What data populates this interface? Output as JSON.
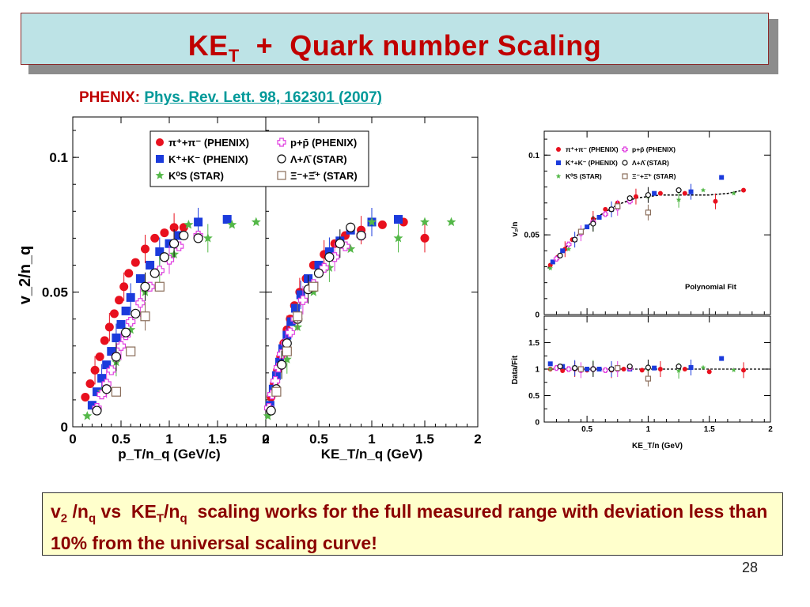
{
  "title": {
    "main": "KE",
    "sub": "T",
    "rest": "  +  Quark number Scaling"
  },
  "reference": {
    "label": "PHENIX:",
    "link": "Phys. Rev. Lett. 98, 162301 (2007)"
  },
  "note": {
    "part1": "v",
    "sub1": "2",
    "part2": " /n",
    "sub2": "q",
    "part3": " vs  KE",
    "sub3": "T",
    "part4": "/n",
    "sub4": "q",
    "part5": "  scaling works for the full measured range with deviation less than 10% from the universal scaling curve!"
  },
  "page_number": "28",
  "colors": {
    "pi": "#e8101e",
    "K": "#1b3bdc",
    "Ks": "#54b848",
    "p": "#e040e0",
    "lambda": "#111111",
    "xi": "#8a6d5a",
    "title": "#c00000",
    "link": "#009999"
  },
  "chart_data": [
    {
      "type": "scatter",
      "panel": "left",
      "xlabel": "p_T/n_q (GeV/c)",
      "ylabel": "v_2/n_q",
      "xlim": [
        0,
        2
      ],
      "ylim": [
        0,
        0.115
      ],
      "xticks": [
        "0",
        "0.5",
        "1",
        "1.5",
        "2"
      ],
      "yticks": [
        "0",
        "0.05",
        "0.1"
      ],
      "legend": [
        {
          "name": "π⁺+π⁻ (PHENIX)",
          "marker": "circle",
          "color": "#e8101e"
        },
        {
          "name": "p+p̄ (PHENIX)",
          "marker": "cross-open",
          "color": "#e040e0"
        },
        {
          "name": "K⁺+K⁻ (PHENIX)",
          "marker": "square",
          "color": "#1b3bdc"
        },
        {
          "name": "Λ+Λ̄ (STAR)",
          "marker": "circle-open",
          "color": "#111111"
        },
        {
          "name": "K⁰S (STAR)",
          "marker": "star",
          "color": "#54b848"
        },
        {
          "name": "Ξ⁻+Ξ̄⁺ (STAR)",
          "marker": "square-open",
          "color": "#8a6d5a"
        }
      ],
      "series": [
        {
          "name": "π⁺+π⁻ (PHENIX)",
          "x": [
            0.13,
            0.18,
            0.23,
            0.28,
            0.33,
            0.38,
            0.43,
            0.48,
            0.53,
            0.58,
            0.65,
            0.75,
            0.85,
            0.95,
            1.05,
            1.15
          ],
          "y": [
            0.011,
            0.016,
            0.021,
            0.026,
            0.032,
            0.037,
            0.042,
            0.047,
            0.052,
            0.057,
            0.061,
            0.066,
            0.07,
            0.072,
            0.074,
            0.074
          ]
        },
        {
          "name": "K⁺+K⁻ (PHENIX)",
          "x": [
            0.2,
            0.25,
            0.3,
            0.35,
            0.4,
            0.45,
            0.5,
            0.55,
            0.6,
            0.7,
            0.8,
            0.9,
            1.0,
            1.1,
            1.3,
            1.6
          ],
          "y": [
            0.008,
            0.013,
            0.018,
            0.023,
            0.028,
            0.033,
            0.038,
            0.043,
            0.048,
            0.055,
            0.06,
            0.065,
            0.068,
            0.071,
            0.076,
            0.077
          ]
        },
        {
          "name": "K⁰S (STAR)",
          "x": [
            0.15,
            0.3,
            0.45,
            0.6,
            0.75,
            0.9,
            1.05,
            1.2,
            1.4,
            1.65,
            1.9
          ],
          "y": [
            0.004,
            0.013,
            0.024,
            0.036,
            0.05,
            0.058,
            0.064,
            0.075,
            0.07,
            0.075,
            0.076
          ]
        },
        {
          "name": "p+p̄ (PHENIX)",
          "x": [
            0.25,
            0.3,
            0.35,
            0.4,
            0.45,
            0.5,
            0.55,
            0.6,
            0.7,
            0.8,
            0.9,
            1.0,
            1.1,
            1.3
          ],
          "y": [
            0.007,
            0.012,
            0.016,
            0.021,
            0.026,
            0.03,
            0.034,
            0.039,
            0.046,
            0.052,
            0.058,
            0.062,
            0.067,
            0.071
          ]
        },
        {
          "name": "Λ+Λ̄ (STAR)",
          "x": [
            0.25,
            0.35,
            0.45,
            0.55,
            0.65,
            0.75,
            0.85,
            0.95,
            1.05,
            1.15,
            1.3
          ],
          "y": [
            0.006,
            0.014,
            0.026,
            0.035,
            0.042,
            0.052,
            0.057,
            0.063,
            0.068,
            0.071,
            0.07
          ]
        },
        {
          "name": "Ξ⁻+Ξ̄⁺ (STAR)",
          "x": [
            0.45,
            0.6,
            0.75,
            0.9
          ],
          "y": [
            0.013,
            0.028,
            0.041,
            0.052
          ]
        }
      ]
    },
    {
      "type": "scatter",
      "panel": "middle",
      "xlabel": "KE_T/n_q (GeV)",
      "xlim": [
        0,
        2
      ],
      "ylim": [
        0,
        0.115
      ],
      "xticks": [
        "0",
        "0.5",
        "1",
        "1.5",
        "2"
      ],
      "series": [
        {
          "name": "π⁺+π⁻ (PHENIX)",
          "x": [
            0.05,
            0.08,
            0.11,
            0.14,
            0.17,
            0.2,
            0.23,
            0.27,
            0.32,
            0.38,
            0.45,
            0.55,
            0.65,
            0.75,
            0.9,
            1.1,
            1.3,
            1.5
          ],
          "y": [
            0.011,
            0.016,
            0.021,
            0.026,
            0.031,
            0.036,
            0.04,
            0.045,
            0.05,
            0.055,
            0.06,
            0.064,
            0.068,
            0.071,
            0.073,
            0.075,
            0.076,
            0.07
          ]
        },
        {
          "name": "K⁺+K⁻ (PHENIX)",
          "x": [
            0.04,
            0.07,
            0.1,
            0.13,
            0.16,
            0.2,
            0.24,
            0.28,
            0.33,
            0.4,
            0.5,
            0.6,
            0.7,
            0.8,
            1.0,
            1.25
          ],
          "y": [
            0.008,
            0.014,
            0.019,
            0.024,
            0.029,
            0.034,
            0.039,
            0.044,
            0.049,
            0.055,
            0.06,
            0.065,
            0.069,
            0.073,
            0.076,
            0.077
          ]
        },
        {
          "name": "K⁰S (STAR)",
          "x": [
            0.02,
            0.1,
            0.2,
            0.3,
            0.45,
            0.6,
            0.8,
            1.0,
            1.25,
            1.5,
            1.75
          ],
          "y": [
            0.004,
            0.013,
            0.025,
            0.037,
            0.05,
            0.059,
            0.066,
            0.076,
            0.07,
            0.076,
            0.076
          ]
        },
        {
          "name": "p+p̄ (PHENIX)",
          "x": [
            0.03,
            0.06,
            0.09,
            0.12,
            0.15,
            0.19,
            0.23,
            0.28,
            0.35,
            0.45,
            0.55,
            0.65,
            0.75,
            0.9
          ],
          "y": [
            0.007,
            0.012,
            0.017,
            0.022,
            0.027,
            0.031,
            0.035,
            0.04,
            0.047,
            0.053,
            0.059,
            0.063,
            0.067,
            0.071
          ]
        },
        {
          "name": "Λ+Λ̄ (STAR)",
          "x": [
            0.05,
            0.1,
            0.15,
            0.2,
            0.3,
            0.4,
            0.5,
            0.6,
            0.7,
            0.8,
            0.9
          ],
          "y": [
            0.006,
            0.014,
            0.023,
            0.031,
            0.04,
            0.051,
            0.057,
            0.063,
            0.068,
            0.074,
            0.071
          ]
        },
        {
          "name": "Ξ⁻+Ξ̄⁺ (STAR)",
          "x": [
            0.1,
            0.2,
            0.3,
            0.45
          ],
          "y": [
            0.013,
            0.028,
            0.041,
            0.052
          ]
        }
      ]
    },
    {
      "type": "scatter",
      "panel": "right-top",
      "ylabel": "v₂/n",
      "xlim": [
        0.15,
        2
      ],
      "ylim": [
        0,
        0.115
      ],
      "yticks": [
        "0",
        "0.05",
        "0.1"
      ],
      "annotation": "Polynomial Fit",
      "legend": [
        {
          "name": "π⁺+π⁻ (PHENIX)",
          "marker": "circle",
          "color": "#e8101e"
        },
        {
          "name": "p+p̄ (PHENIX)",
          "marker": "cross-open",
          "color": "#e040e0"
        },
        {
          "name": "K⁺+K⁻ (PHENIX)",
          "marker": "square",
          "color": "#1b3bdc"
        },
        {
          "name": "Λ+Λ̄ (STAR)",
          "marker": "circle-open",
          "color": "#111111"
        },
        {
          "name": "K⁰S (STAR)",
          "marker": "star",
          "color": "#54b848"
        },
        {
          "name": "Ξ⁻+Ξ̄⁺ (STAR)",
          "marker": "square-open",
          "color": "#8a6d5a"
        }
      ],
      "fit": {
        "x": [
          0.18,
          0.3,
          0.45,
          0.6,
          0.75,
          0.9,
          1.1,
          1.3,
          1.5,
          1.65,
          1.78
        ],
        "y": [
          0.029,
          0.04,
          0.052,
          0.062,
          0.069,
          0.073,
          0.075,
          0.075,
          0.075,
          0.076,
          0.078
        ]
      },
      "series": [
        {
          "name": "π⁺+π⁻ (PHENIX)",
          "x": [
            0.2,
            0.26,
            0.32,
            0.38,
            0.45,
            0.55,
            0.65,
            0.75,
            0.9,
            1.1,
            1.3,
            1.55,
            1.78
          ],
          "y": [
            0.031,
            0.036,
            0.041,
            0.047,
            0.052,
            0.06,
            0.066,
            0.07,
            0.074,
            0.076,
            0.076,
            0.071,
            0.078
          ]
        },
        {
          "name": "K⁺+K⁻ (PHENIX)",
          "x": [
            0.22,
            0.3,
            0.4,
            0.5,
            0.6,
            0.7,
            0.85,
            1.05,
            1.35,
            1.6
          ],
          "y": [
            0.033,
            0.04,
            0.047,
            0.055,
            0.061,
            0.066,
            0.072,
            0.076,
            0.077,
            0.086
          ]
        },
        {
          "name": "K⁰S (STAR)",
          "x": [
            0.2,
            0.35,
            0.55,
            0.75,
            1.0,
            1.25,
            1.45,
            1.7
          ],
          "y": [
            0.029,
            0.041,
            0.057,
            0.067,
            0.074,
            0.072,
            0.078,
            0.076
          ]
        },
        {
          "name": "p+p̄ (PHENIX)",
          "x": [
            0.25,
            0.35,
            0.45,
            0.55,
            0.65,
            0.75,
            0.85
          ],
          "y": [
            0.035,
            0.044,
            0.051,
            0.058,
            0.063,
            0.067,
            0.071
          ]
        },
        {
          "name": "Λ+Λ̄ (STAR)",
          "x": [
            0.28,
            0.4,
            0.55,
            0.7,
            0.85,
            1.0,
            1.25
          ],
          "y": [
            0.037,
            0.047,
            0.057,
            0.066,
            0.073,
            0.075,
            0.078
          ]
        },
        {
          "name": "Ξ⁻+Ξ̄⁺ (STAR)",
          "x": [
            0.45,
            0.75,
            1.0
          ],
          "y": [
            0.052,
            0.068,
            0.064
          ]
        }
      ]
    },
    {
      "type": "scatter",
      "panel": "right-bottom",
      "xlabel": "KE_T/n (GeV)",
      "ylabel": "Data/Fit",
      "xlim": [
        0.15,
        2
      ],
      "ylim": [
        0,
        2
      ],
      "xticks": [
        "0.5",
        "1",
        "1.5",
        "2"
      ],
      "yticks": [
        "0",
        "0.5",
        "1",
        "1.5"
      ],
      "series": [
        {
          "name": "π⁺+π⁻ (PHENIX)",
          "x": [
            0.2,
            0.3,
            0.4,
            0.5,
            0.6,
            0.7,
            0.8,
            0.95,
            1.1,
            1.3,
            1.5,
            1.78
          ],
          "y": [
            1.0,
            0.97,
            1.0,
            0.98,
            1.0,
            0.98,
            1.0,
            0.98,
            1.0,
            1.0,
            0.95,
            0.98
          ]
        },
        {
          "name": "K⁺+K⁻ (PHENIX)",
          "x": [
            0.2,
            0.3,
            0.4,
            0.5,
            0.6,
            0.7,
            0.85,
            1.05,
            1.35,
            1.6
          ],
          "y": [
            1.1,
            1.05,
            1.02,
            1.0,
            1.0,
            1.0,
            1.0,
            1.02,
            1.03,
            1.2
          ]
        },
        {
          "name": "K⁰S (STAR)",
          "x": [
            0.2,
            0.35,
            0.55,
            0.75,
            1.0,
            1.25,
            1.45,
            1.7
          ],
          "y": [
            1.0,
            1.0,
            1.02,
            0.98,
            1.0,
            0.97,
            1.03,
            0.98
          ]
        },
        {
          "name": "p+p̄ (PHENIX)",
          "x": [
            0.25,
            0.35,
            0.45,
            0.55,
            0.65,
            0.75,
            0.85
          ],
          "y": [
            1.02,
            1.0,
            0.98,
            1.0,
            0.98,
            1.0,
            1.02
          ]
        },
        {
          "name": "Λ+Λ̄ (STAR)",
          "x": [
            0.28,
            0.4,
            0.55,
            0.7,
            0.85,
            1.0,
            1.25
          ],
          "y": [
            1.05,
            1.02,
            1.0,
            1.0,
            1.05,
            1.03,
            1.05
          ]
        },
        {
          "name": "Ξ⁻+Ξ̄⁺ (STAR)",
          "x": [
            0.45,
            0.75,
            1.0
          ],
          "y": [
            1.0,
            1.02,
            0.82
          ]
        }
      ]
    }
  ]
}
